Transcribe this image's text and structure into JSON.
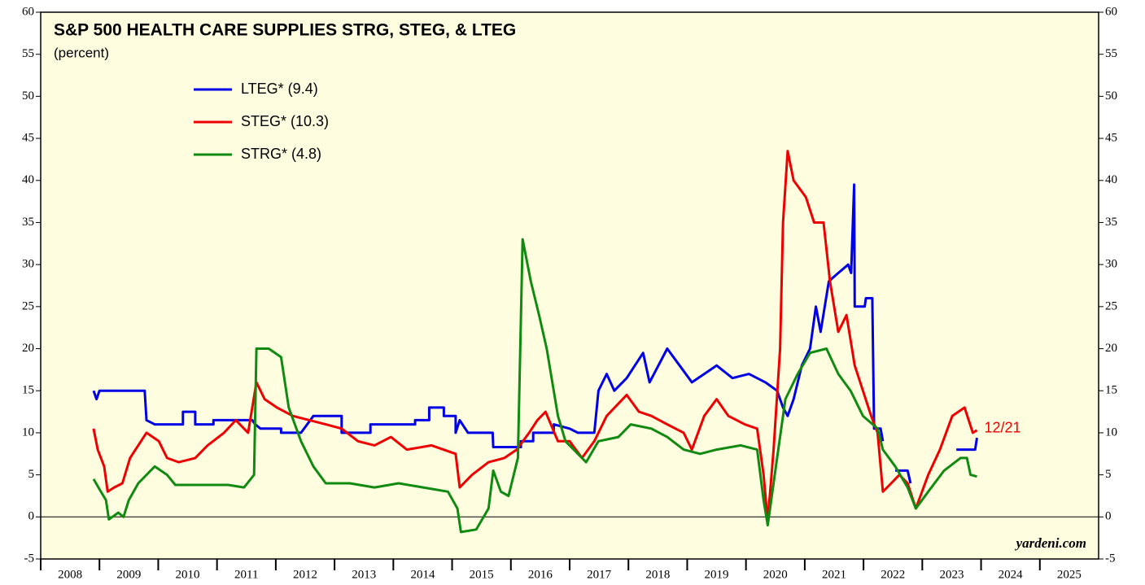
{
  "chart_data": {
    "type": "line",
    "title": "S&P 500 HEALTH CARE SUPPLIES STRG, STEG, & LTEG",
    "subtitle": "(percent)",
    "annotation": "12/21",
    "source": "yardeni.com",
    "xlim": [
      2008,
      2026
    ],
    "xticks": [
      2008,
      2009,
      2010,
      2011,
      2012,
      2013,
      2014,
      2015,
      2016,
      2017,
      2018,
      2019,
      2020,
      2021,
      2022,
      2023,
      2024,
      2025
    ],
    "ylim": [
      -5,
      60
    ],
    "yticks": [
      -5,
      0,
      5,
      10,
      15,
      20,
      25,
      30,
      35,
      40,
      45,
      50,
      55,
      60
    ],
    "y2lim": [
      -5,
      60
    ],
    "y2ticks": [
      -5,
      0,
      5,
      10,
      15,
      20,
      25,
      30,
      35,
      40,
      45,
      50,
      55,
      60
    ],
    "legend": "upper left",
    "series": [
      {
        "name": "LTEG* (9.4)",
        "color": "#0000e6",
        "x": [
          2008.9,
          2008.95,
          2009.0,
          2009.77,
          2009.8,
          2009.94,
          2010.42,
          2010.42,
          2010.63,
          2010.63,
          2010.94,
          2010.94,
          2011.6,
          2011.65,
          2011.74,
          2012.09,
          2012.09,
          2012.43,
          2012.64,
          2013.12,
          2013.12,
          2013.61,
          2013.61,
          2014.37,
          2014.37,
          2014.61,
          2014.61,
          2014.86,
          2014.86,
          2015.06,
          2015.06,
          2015.13,
          2015.27,
          2015.69,
          2015.7,
          2016.17,
          2016.17,
          2016.38,
          2016.38,
          2016.73,
          2016.73,
          2017.0,
          2017.14,
          2017.42,
          2017.49,
          2017.63,
          2017.76,
          2017.97,
          2018.11,
          2018.25,
          2018.36,
          2018.66,
          2018.87,
          2019.08,
          2019.29,
          2019.5,
          2019.77,
          2020.05,
          2020.33,
          2020.53,
          2020.63,
          2020.71,
          2020.81,
          2020.95,
          2021.09,
          2021.19,
          2021.27,
          2021.41,
          2021.57,
          2021.74,
          2021.79,
          2021.84,
          2021.85,
          2022.02,
          2022.04,
          2022.15,
          2022.18,
          2022.29,
          2022.33,
          2022.43,
          2022.54,
          2022.75,
          2022.8,
          2023.2,
          2023.58,
          2023.9,
          2023.93
        ],
        "values": [
          15,
          14,
          15,
          15,
          11.5,
          11,
          11,
          12.5,
          12.5,
          11,
          11,
          11.5,
          11.5,
          11,
          10.5,
          10.5,
          10,
          10,
          12,
          12,
          10,
          10,
          11,
          11,
          11.5,
          11.5,
          13,
          13,
          12,
          12,
          10,
          11.5,
          10,
          10,
          8.3,
          8.3,
          9,
          9,
          10,
          10,
          11,
          10.5,
          10,
          10,
          15,
          17,
          15,
          16.5,
          18,
          19.5,
          16,
          20,
          18,
          16,
          17,
          18,
          16.5,
          17,
          16,
          15,
          13,
          12,
          14,
          18,
          20,
          25,
          22,
          28,
          29,
          30,
          29,
          39.5,
          25,
          25,
          26,
          26,
          10.5,
          10.5,
          9,
          null,
          5.5,
          5.5,
          4,
          null,
          8,
          8,
          9.4
        ]
      },
      {
        "name": "STEG* (10.3)",
        "color": "#ee0000",
        "x": [
          2008.9,
          2008.97,
          2009.08,
          2009.14,
          2009.25,
          2009.39,
          2009.52,
          2009.66,
          2009.8,
          2010.01,
          2010.15,
          2010.35,
          2010.63,
          2010.84,
          2011.12,
          2011.32,
          2011.53,
          2011.67,
          2011.81,
          2012.02,
          2012.29,
          2012.57,
          2012.85,
          2013.12,
          2013.4,
          2013.68,
          2013.96,
          2014.23,
          2014.65,
          2015.06,
          2015.13,
          2015.34,
          2015.62,
          2015.89,
          2016.1,
          2016.31,
          2016.45,
          2016.59,
          2016.8,
          2017.0,
          2017.21,
          2017.42,
          2017.63,
          2017.97,
          2018.18,
          2018.39,
          2018.66,
          2018.94,
          2019.08,
          2019.29,
          2019.5,
          2019.7,
          2019.98,
          2020.19,
          2020.3,
          2020.37,
          2020.47,
          2020.58,
          2020.63,
          2020.71,
          2020.81,
          2021.02,
          2021.16,
          2021.32,
          2021.43,
          2021.57,
          2021.71,
          2021.85,
          2021.99,
          2022.13,
          2022.24,
          2022.33,
          2022.47,
          2022.61,
          2022.75,
          2022.89,
          2023.1,
          2023.3,
          2023.51,
          2023.72,
          2023.86,
          2023.93
        ],
        "values": [
          10.5,
          8,
          6,
          3,
          3.5,
          4,
          7,
          8.5,
          10,
          9,
          7,
          6.5,
          7,
          8.5,
          10,
          11.5,
          10,
          16,
          14,
          13,
          12,
          11.5,
          11,
          10.5,
          9,
          8.5,
          9.5,
          8,
          8.5,
          7.5,
          3.5,
          5,
          6.5,
          7,
          8,
          10,
          11.5,
          12.5,
          9,
          9,
          7,
          9,
          12,
          14.5,
          12.5,
          12,
          11,
          10,
          8,
          12,
          14,
          12,
          11,
          10.5,
          5,
          -0.5,
          8,
          20,
          35,
          43.5,
          40,
          38,
          35,
          35,
          28,
          22,
          24,
          18,
          15,
          12,
          10,
          3,
          4,
          5,
          4,
          1,
          5,
          8,
          12,
          13,
          10,
          10.3
        ]
      },
      {
        "name": "STRG* (4.8)",
        "color": "#108a10",
        "x": [
          2008.9,
          2009.0,
          2009.11,
          2009.16,
          2009.32,
          2009.41,
          2009.5,
          2009.66,
          2009.94,
          2010.15,
          2010.29,
          2010.77,
          2011.19,
          2011.46,
          2011.63,
          2011.67,
          2011.88,
          2012.09,
          2012.22,
          2012.43,
          2012.64,
          2012.85,
          2013.26,
          2013.68,
          2014.09,
          2014.51,
          2014.93,
          2015.09,
          2015.15,
          2015.41,
          2015.62,
          2015.7,
          2015.83,
          2015.96,
          2016.12,
          2016.2,
          2016.34,
          2016.48,
          2016.61,
          2016.8,
          2016.93,
          2017.28,
          2017.49,
          2017.83,
          2018.04,
          2018.39,
          2018.66,
          2018.94,
          2019.22,
          2019.5,
          2019.91,
          2020.19,
          2020.3,
          2020.37,
          2020.53,
          2020.67,
          2020.88,
          2021.09,
          2021.37,
          2021.57,
          2021.78,
          2021.99,
          2022.24,
          2022.33,
          2022.54,
          2022.75,
          2022.89,
          2023.1,
          2023.37,
          2023.65,
          2023.76,
          2023.82,
          2023.93
        ],
        "values": [
          4.5,
          3.3,
          2,
          -0.3,
          0.5,
          0,
          2,
          4,
          6,
          5,
          3.8,
          3.8,
          3.8,
          3.5,
          5,
          20,
          20,
          19,
          13,
          9,
          6,
          4,
          4,
          3.5,
          4,
          3.5,
          3,
          1,
          -1.8,
          -1.5,
          1,
          5.5,
          3,
          2.5,
          7,
          33,
          28,
          24,
          20,
          12,
          9,
          6.5,
          9,
          9.5,
          11,
          10.5,
          9.5,
          8,
          7.5,
          8,
          8.5,
          8,
          2,
          -1,
          7,
          14,
          17,
          19.5,
          20,
          17,
          15,
          12,
          10.5,
          8,
          6,
          3.5,
          1,
          3,
          5.5,
          7,
          7,
          5,
          4.8
        ]
      }
    ]
  }
}
